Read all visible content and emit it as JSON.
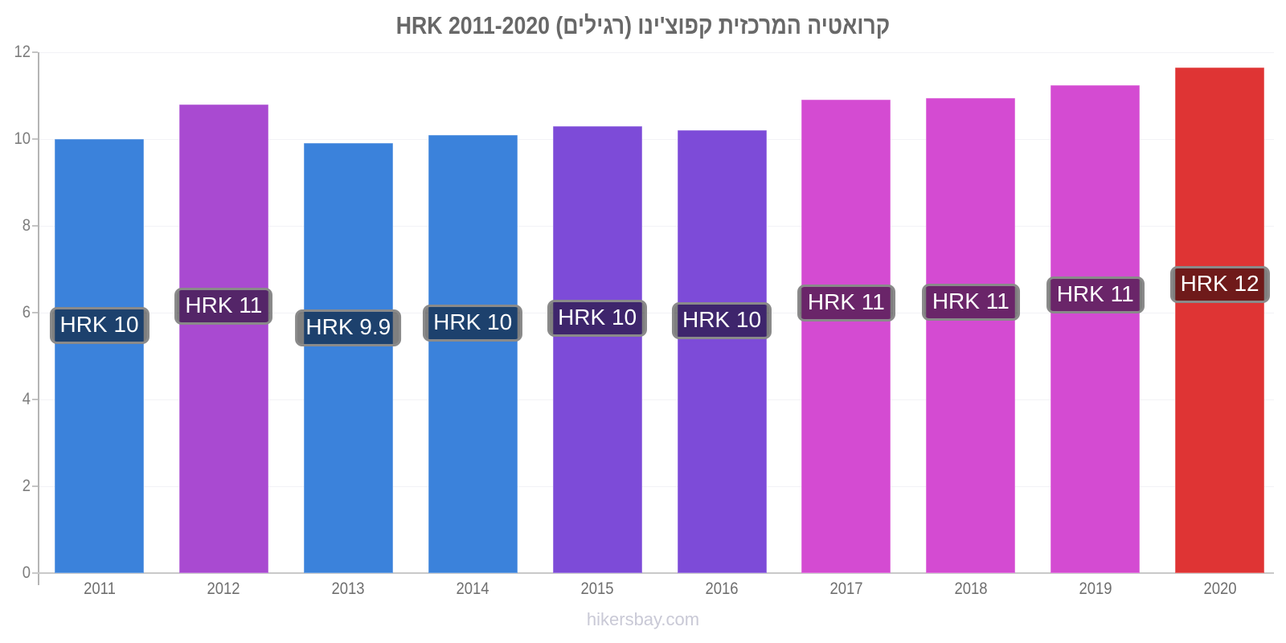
{
  "title": "קרואטיה המרכזית קפוצ'ינו (רגילים) HRK 2011-2020",
  "footer": {
    "text": "hikersbay.com"
  },
  "colors": {
    "blue": "#3b82db",
    "orchid": "#a94ad1",
    "violet": "#7d4bd8",
    "magenta": "#d44bd2",
    "red": "#df3434",
    "label_pill_bg": "rgba(0,0,0,0.5)",
    "label_pill_border": "#8a8a8a",
    "label_pill_text": "#ffffff",
    "axis_line": "#b5b5b5",
    "tick_text": "#7d7d7d",
    "title_text": "#686868",
    "watermark_text": "#c9c9d6"
  },
  "chart_data": {
    "type": "bar",
    "title": "קרואטיה המרכזית קפוצ'ינו (רגילים) HRK 2011-2020",
    "categories": [
      "2011",
      "2012",
      "2013",
      "2014",
      "2015",
      "2016",
      "2017",
      "2018",
      "2019",
      "2020"
    ],
    "values": [
      10.0,
      10.8,
      9.9,
      10.1,
      10.3,
      10.2,
      10.9,
      10.95,
      11.25,
      11.65
    ],
    "bar_labels": [
      "HRK 10",
      "HRK 11",
      "HRK 9.9",
      "HRK 10",
      "HRK 10",
      "HRK 10",
      "HRK 11",
      "HRK 11",
      "HRK 11",
      "HRK 12"
    ],
    "bar_colors": [
      "#3b82db",
      "#a94ad1",
      "#3b82db",
      "#3b82db",
      "#7d4bd8",
      "#7d4bd8",
      "#d44bd2",
      "#d44bd2",
      "#d44bd2",
      "#df3434"
    ],
    "xlabel": "",
    "ylabel": "",
    "ylim": [
      0,
      12
    ],
    "yticks": [
      0,
      2,
      4,
      6,
      8,
      10,
      12
    ],
    "grid": true,
    "legend": false,
    "watermark": "hikersbay.com"
  }
}
